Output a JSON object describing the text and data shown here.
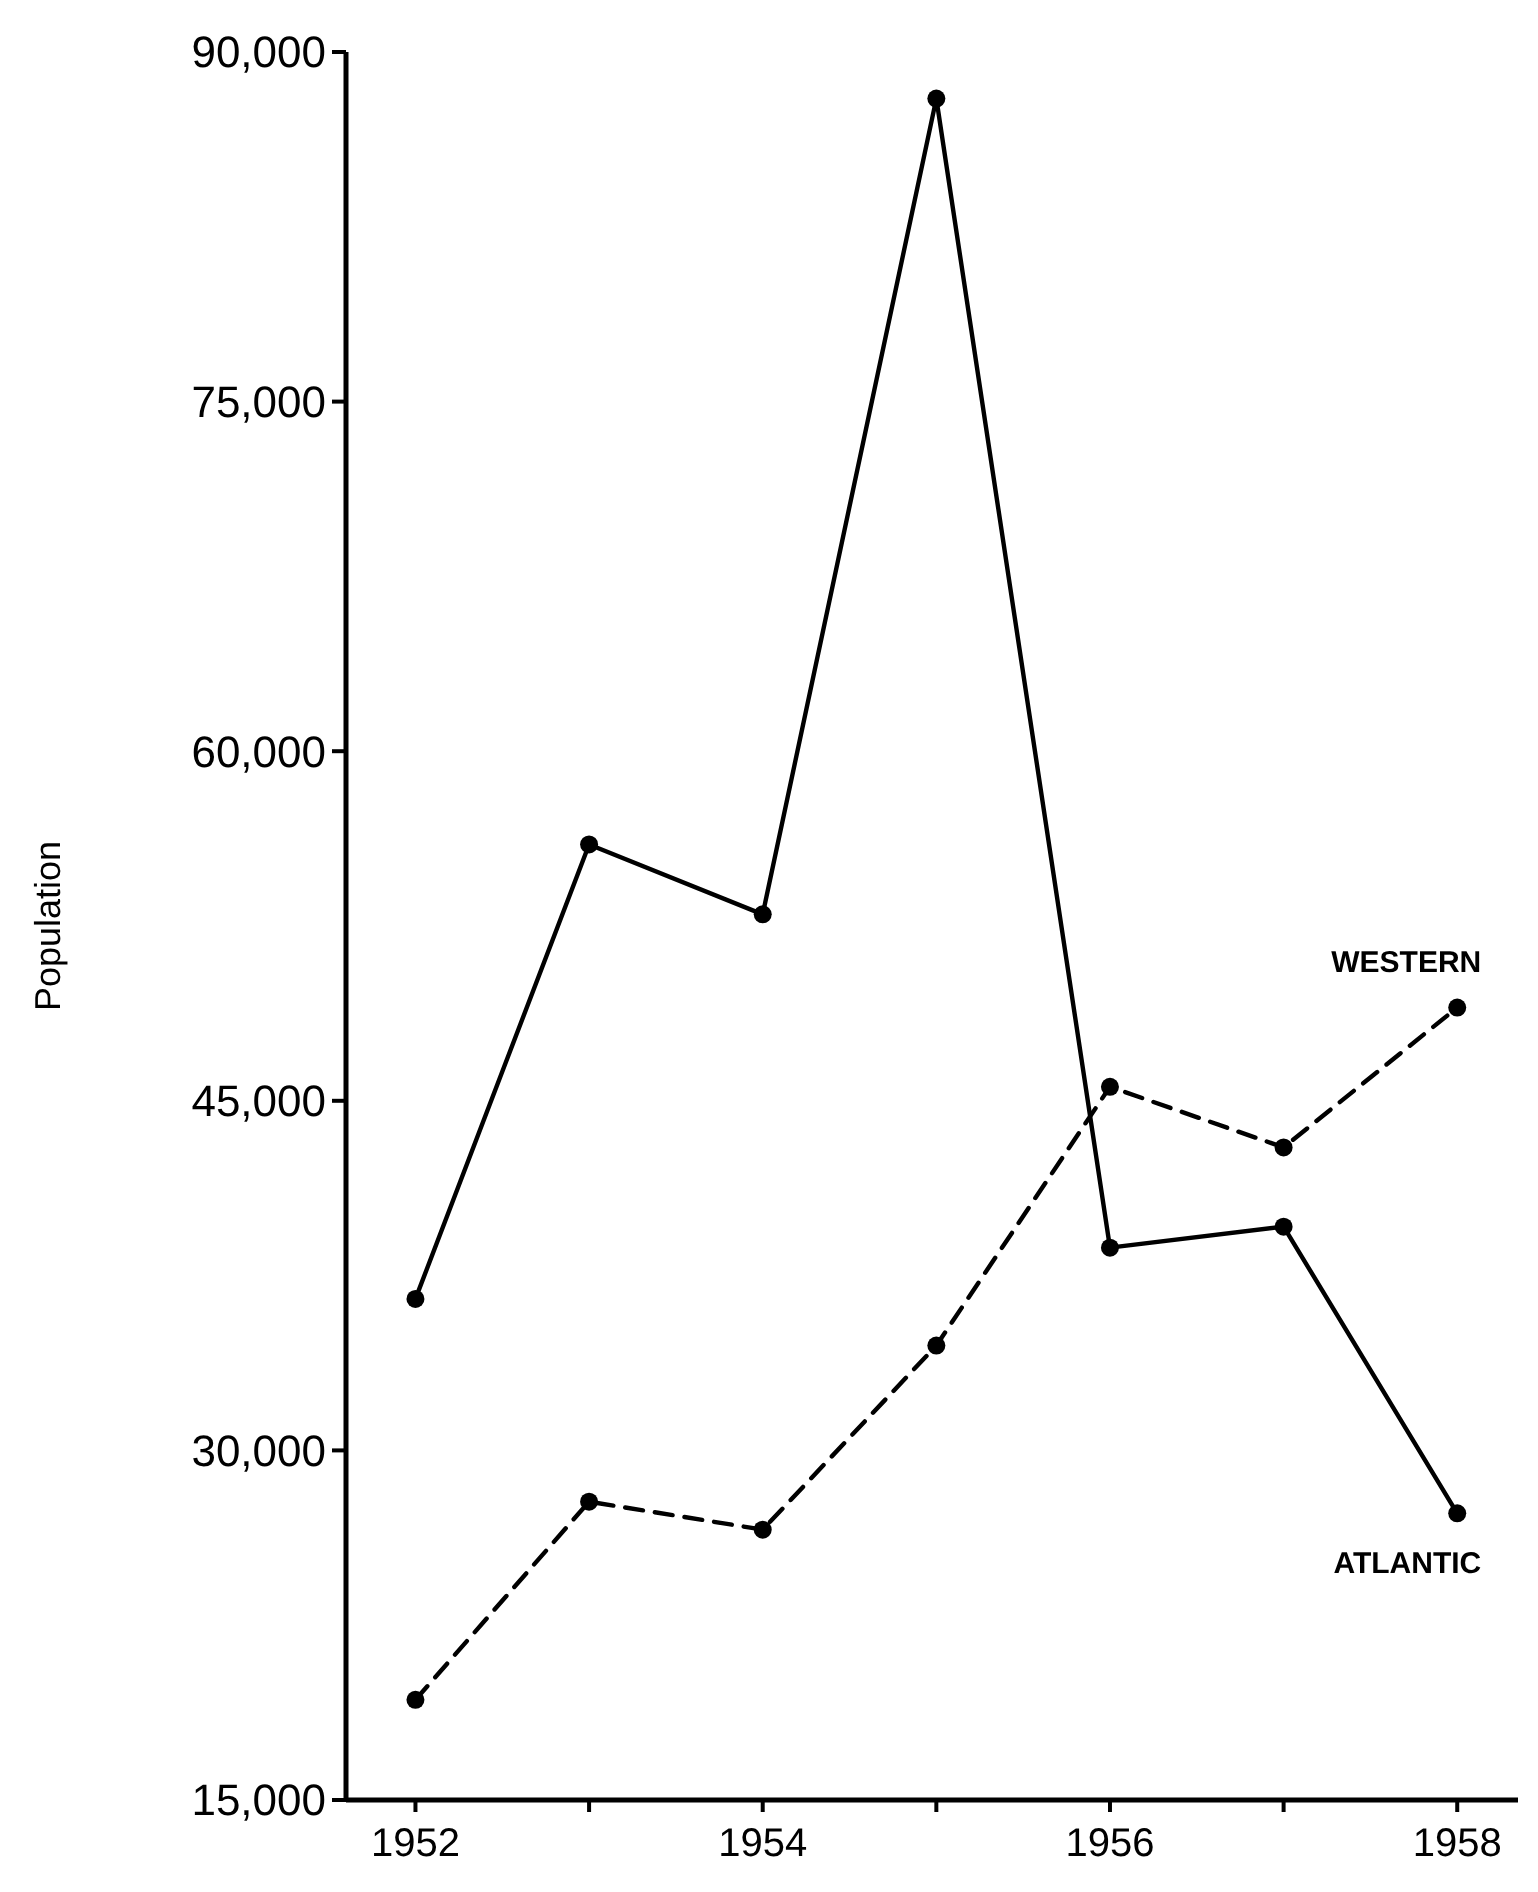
{
  "chart_data": {
    "type": "line",
    "ylabel": "Population",
    "x": [
      1952,
      1953,
      1954,
      1955,
      1956,
      1957,
      1958
    ],
    "xlim": [
      1951.6,
      1958.35
    ],
    "xticks": [
      1952,
      {
        "value": 1953,
        "label": null
      },
      1954,
      {
        "value": 1955,
        "label": null
      },
      1956,
      {
        "value": 1957,
        "label": null
      },
      1958
    ],
    "ylim": [
      15000,
      90000
    ],
    "yticks": [
      {
        "value": 15000,
        "label": "15,000"
      },
      {
        "value": 30000,
        "label": "30,000"
      },
      {
        "value": 45000,
        "label": "45,000"
      },
      {
        "value": 60000,
        "label": "60,000"
      },
      {
        "value": 75000,
        "label": "75,000"
      },
      {
        "value": 90000,
        "label": "90,000"
      }
    ],
    "marker": "circle",
    "series": [
      {
        "name": "ATLANTIC",
        "color": "#000000",
        "line_style": "solid",
        "values": [
          36500,
          56000,
          53000,
          88000,
          38700,
          39600,
          27300
        ]
      },
      {
        "name": "WESTERN",
        "color": "#000000",
        "line_style": "dashed",
        "values": [
          19300,
          27800,
          26600,
          34500,
          45600,
          43000,
          49000
        ]
      }
    ]
  }
}
